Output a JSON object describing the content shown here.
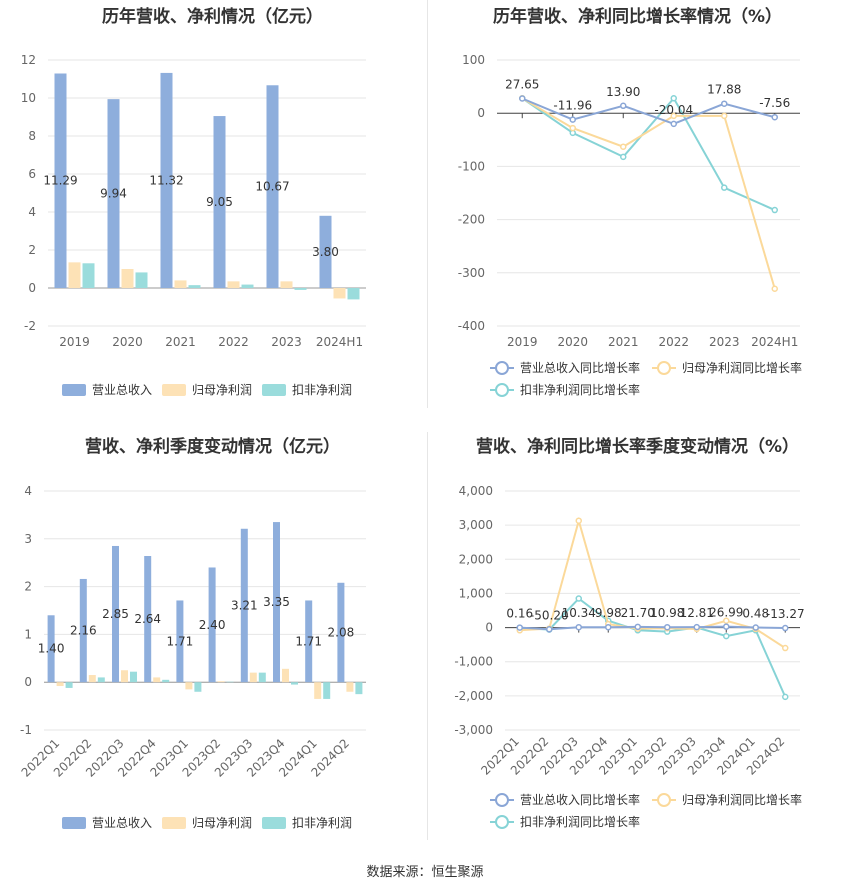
{
  "source_text": "数据来源：恒生聚源",
  "colors": {
    "revenue": "#8eaedc",
    "net_profit": "#fde2b6",
    "deducted_profit": "#9adcdc",
    "revenue_line": "#8aa6d6",
    "net_profit_line": "#fbd99a",
    "deducted_line": "#86d3d6",
    "grid": "#e6e6e6",
    "axis_text": "#666666"
  },
  "chart_data": [
    {
      "type": "bar",
      "title": "历年营收、净利情况（亿元）",
      "categories": [
        "2019",
        "2020",
        "2021",
        "2022",
        "2023",
        "2024H1"
      ],
      "ylim": [
        -2,
        12
      ],
      "yticks": [
        -2,
        0,
        2,
        4,
        6,
        8,
        10,
        12
      ],
      "series": [
        {
          "name": "营业总收入",
          "values": [
            11.29,
            9.94,
            11.32,
            9.05,
            10.67,
            3.8
          ],
          "labels": [
            "11.29",
            "9.94",
            "11.32",
            "9.05",
            "10.67",
            "3.80"
          ]
        },
        {
          "name": "归母净利润",
          "values": [
            1.35,
            1.0,
            0.4,
            0.35,
            0.35,
            -0.55
          ]
        },
        {
          "name": "扣非净利润",
          "values": [
            1.3,
            0.82,
            0.15,
            0.18,
            -0.1,
            -0.6
          ]
        }
      ],
      "legend": "bottom"
    },
    {
      "type": "line",
      "title": "历年营收、净利同比增长率情况（%）",
      "categories": [
        "2019",
        "2020",
        "2021",
        "2022",
        "2023",
        "2024H1"
      ],
      "ylim": [
        -400,
        100
      ],
      "yticks": [
        -400,
        -300,
        -200,
        -100,
        0,
        100
      ],
      "series": [
        {
          "name": "营业总收入同比增长率",
          "values": [
            27.65,
            -11.96,
            13.9,
            -20.04,
            17.88,
            -7.56
          ],
          "labels": [
            "27.65",
            "-11.96",
            "13.90",
            "-20.04",
            "17.88",
            "-7.56"
          ]
        },
        {
          "name": "归母净利润同比增长率",
          "values": [
            28,
            -28,
            -63,
            -5,
            -5,
            -330
          ]
        },
        {
          "name": "扣非净利润同比增长率",
          "values": [
            28,
            -37,
            -82,
            28,
            -140,
            -182
          ]
        }
      ],
      "legend": "bottom"
    },
    {
      "type": "bar",
      "title": "营收、净利季度变动情况（亿元）",
      "categories": [
        "2022Q1",
        "2022Q2",
        "2022Q3",
        "2022Q4",
        "2023Q1",
        "2023Q2",
        "2023Q3",
        "2023Q4",
        "2024Q1",
        "2024Q2"
      ],
      "ylim": [
        -1,
        4
      ],
      "yticks": [
        -1,
        0,
        1,
        2,
        3,
        4
      ],
      "series": [
        {
          "name": "营业总收入",
          "values": [
            1.4,
            2.16,
            2.85,
            2.64,
            1.71,
            2.4,
            3.21,
            3.35,
            1.71,
            2.08
          ],
          "labels": [
            "1.40",
            "2.16",
            "2.85",
            "2.64",
            "1.71",
            "2.40",
            "3.21",
            "3.35",
            "1.71",
            "2.08"
          ]
        },
        {
          "name": "归母净利润",
          "values": [
            -0.08,
            0.15,
            0.25,
            0.1,
            -0.15,
            0.02,
            0.2,
            0.28,
            -0.35,
            -0.2
          ]
        },
        {
          "name": "扣非净利润",
          "values": [
            -0.12,
            0.1,
            0.22,
            0.05,
            -0.2,
            0.01,
            0.2,
            -0.05,
            -0.35,
            -0.25
          ]
        }
      ],
      "legend": "bottom"
    },
    {
      "type": "line",
      "title": "营收、净利同比增长率季度变动情况（%）",
      "categories": [
        "2022Q1",
        "2022Q2",
        "2022Q3",
        "2022Q4",
        "2023Q1",
        "2023Q2",
        "2023Q3",
        "2023Q4",
        "2024Q1",
        "2024Q2"
      ],
      "ylim": [
        -3000,
        4000
      ],
      "yticks": [
        -3000,
        -2000,
        -1000,
        0,
        1000,
        2000,
        3000,
        4000
      ],
      "ytick_labels": [
        "-3,000",
        "-2,000",
        "-1,000",
        "0",
        "1,000",
        "2,000",
        "3,000",
        "4,000"
      ],
      "series": [
        {
          "name": "营业总收入同比增长率",
          "values": [
            0.16,
            -50.2,
            10.34,
            9.98,
            21.7,
            10.98,
            12.81,
            26.99,
            0.48,
            -13.27
          ],
          "labels": [
            "0.16",
            "-50.20",
            "10.34",
            "9.98",
            "21.70",
            "10.98",
            "12.81",
            "26.99",
            "0.48",
            "-13.27"
          ]
        },
        {
          "name": "归母净利润同比增长率",
          "values": [
            -80,
            -30,
            3130,
            100,
            -30,
            -20,
            -40,
            200,
            -40,
            -600
          ]
        },
        {
          "name": "扣非净利润同比增长率",
          "values": [
            -10,
            -60,
            850,
            200,
            -80,
            -120,
            0,
            -250,
            -80,
            -2030
          ]
        }
      ],
      "legend": "bottom"
    }
  ]
}
